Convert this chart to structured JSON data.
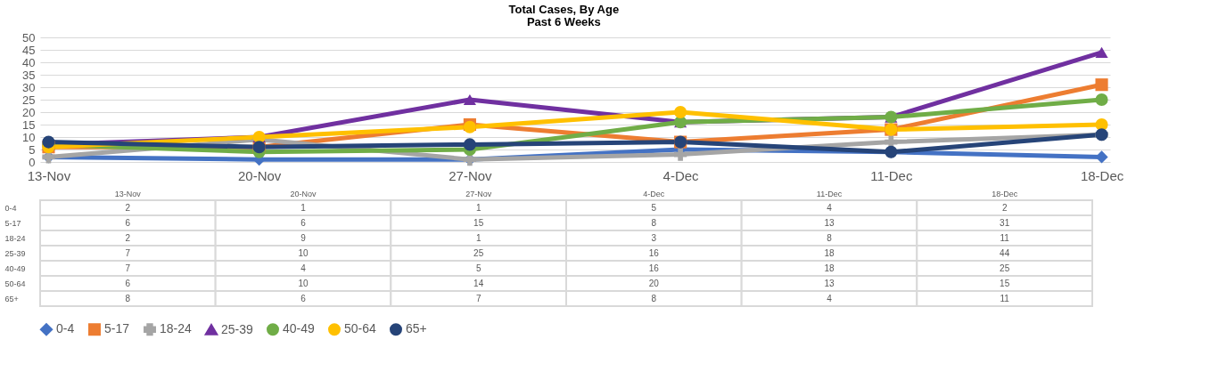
{
  "chart_data": {
    "type": "line",
    "title": "Total Cases, By Age",
    "subtitle": "Past 6 Weeks",
    "categories": [
      "13-Nov",
      "20-Nov",
      "27-Nov",
      "4-Dec",
      "11-Dec",
      "18-Dec"
    ],
    "series": [
      {
        "name": "0-4",
        "color": "#4472c4",
        "marker": "diamond",
        "values": [
          2,
          1,
          1,
          5,
          4,
          2
        ]
      },
      {
        "name": "5-17",
        "color": "#ed7d31",
        "marker": "square",
        "values": [
          6,
          6,
          15,
          8,
          13,
          31
        ]
      },
      {
        "name": "18-24",
        "color": "#a5a5a5",
        "marker": "cross",
        "values": [
          2,
          9,
          1,
          3,
          8,
          11
        ]
      },
      {
        "name": "25-39",
        "color": "#7030a0",
        "marker": "triangle",
        "values": [
          7,
          10,
          25,
          16,
          18,
          44
        ]
      },
      {
        "name": "40-49",
        "color": "#70ad47",
        "marker": "circle",
        "values": [
          7,
          4,
          5,
          16,
          18,
          25
        ]
      },
      {
        "name": "50-64",
        "color": "#ffc000",
        "marker": "circle",
        "values": [
          6,
          10,
          14,
          20,
          13,
          15
        ]
      },
      {
        "name": "65+",
        "color": "#264478",
        "marker": "circle",
        "values": [
          8,
          6,
          7,
          8,
          4,
          11
        ]
      }
    ],
    "ylim": [
      0,
      50
    ],
    "yticks": [
      0,
      5,
      10,
      15,
      20,
      25,
      30,
      35,
      40,
      45,
      50
    ],
    "grid": "y",
    "legend": "bottom",
    "line_style": "solid",
    "data_labels": true
  }
}
